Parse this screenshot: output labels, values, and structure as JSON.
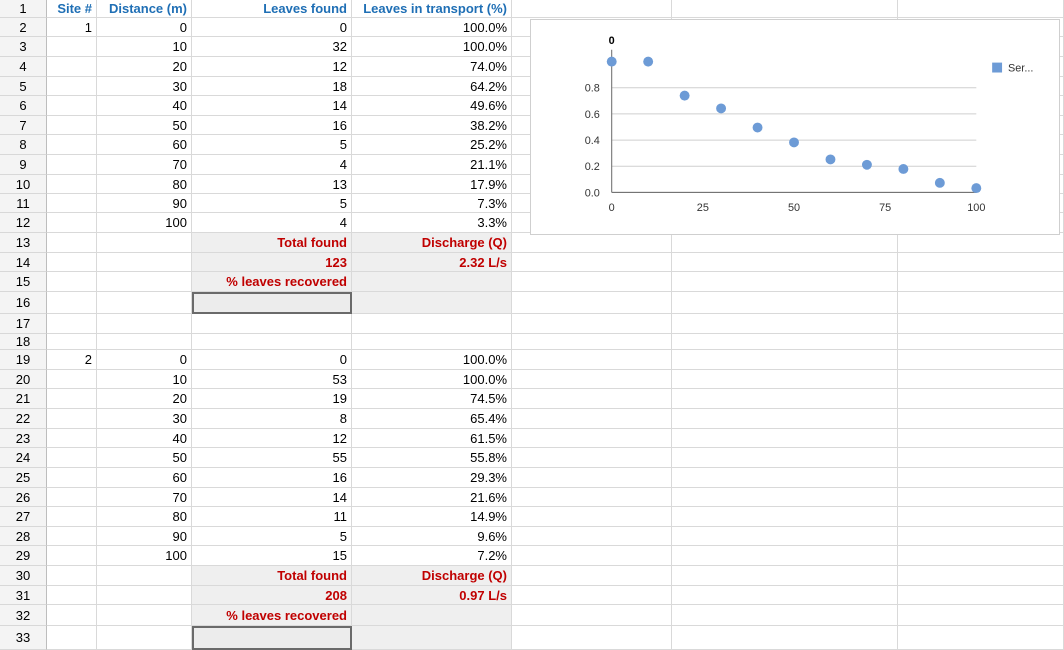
{
  "row_numbers": [
    "1",
    "2",
    "3",
    "4",
    "5",
    "6",
    "7",
    "8",
    "9",
    "10",
    "11",
    "12",
    "13",
    "14",
    "15",
    "16",
    "17",
    "18",
    "19",
    "20",
    "21",
    "22",
    "23",
    "24",
    "25",
    "26",
    "27",
    "28",
    "29",
    "30",
    "31",
    "32",
    "33"
  ],
  "headers": {
    "site": "Site #",
    "distance": "Distance (m)",
    "leaves_found": "Leaves found",
    "leaves_transport": "Leaves in transport (%)"
  },
  "site1": {
    "id": "1",
    "distances": [
      "0",
      "10",
      "20",
      "30",
      "40",
      "50",
      "60",
      "70",
      "80",
      "90",
      "100"
    ],
    "leaves_found": [
      "0",
      "32",
      "12",
      "18",
      "14",
      "16",
      "5",
      "4",
      "13",
      "5",
      "4"
    ],
    "transport": [
      "100.0%",
      "100.0%",
      "74.0%",
      "64.2%",
      "49.6%",
      "38.2%",
      "25.2%",
      "21.1%",
      "17.9%",
      "7.3%",
      "3.3%"
    ],
    "total_label": "Total found",
    "total_value": "123",
    "discharge_label": "Discharge (Q)",
    "discharge_value": "2.32 L/s",
    "recovered_label": "% leaves  recovered"
  },
  "site2": {
    "id": "2",
    "distances": [
      "0",
      "10",
      "20",
      "30",
      "40",
      "50",
      "60",
      "70",
      "80",
      "90",
      "100"
    ],
    "leaves_found": [
      "0",
      "53",
      "19",
      "8",
      "12",
      "55",
      "16",
      "14",
      "11",
      "5",
      "15"
    ],
    "transport": [
      "100.0%",
      "100.0%",
      "74.5%",
      "65.4%",
      "61.5%",
      "55.8%",
      "29.3%",
      "21.6%",
      "14.9%",
      "9.6%",
      "7.2%"
    ],
    "total_label": "Total found",
    "total_value": "208",
    "discharge_label": "Discharge (Q)",
    "discharge_value": "0.97 L/s",
    "recovered_label": "% leaves  recovered"
  },
  "chart_data": {
    "type": "scatter",
    "title": "0",
    "x": [
      0,
      10,
      20,
      30,
      40,
      50,
      60,
      70,
      80,
      90,
      100
    ],
    "series": [
      {
        "name": "Ser...",
        "values": [
          1.0,
          1.0,
          0.74,
          0.642,
          0.496,
          0.382,
          0.252,
          0.211,
          0.179,
          0.073,
          0.033
        ]
      }
    ],
    "x_ticks": [
      "0",
      "25",
      "50",
      "75",
      "100"
    ],
    "y_ticks": [
      "0.0",
      "0.2",
      "0.4",
      "0.6",
      "0.8"
    ],
    "xlim": [
      0,
      100
    ],
    "ylim": [
      0,
      1
    ],
    "grid": true,
    "legend_position": "top-right",
    "colors": {
      "series": "#6d9bd6",
      "title": "#000000"
    }
  }
}
